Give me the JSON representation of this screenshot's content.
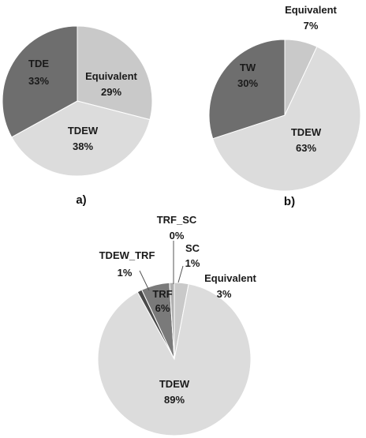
{
  "chart_data": [
    {
      "type": "pie",
      "caption": "a)",
      "slices": [
        {
          "label": "Equivalent",
          "value": 29,
          "value_label": "29%",
          "color": "#c9c9c9"
        },
        {
          "label": "TDEW",
          "value": 38,
          "value_label": "38%",
          "color": "#dcdcdc"
        },
        {
          "label": "TDE",
          "value": 33,
          "value_label": "33%",
          "color": "#6e6e6e"
        }
      ]
    },
    {
      "type": "pie",
      "caption": "b)",
      "slices": [
        {
          "label": "Equivalent",
          "value": 7,
          "value_label": "7%",
          "color": "#c9c9c9"
        },
        {
          "label": "TDEW",
          "value": 63,
          "value_label": "63%",
          "color": "#dcdcdc"
        },
        {
          "label": "TW",
          "value": 30,
          "value_label": "30%",
          "color": "#6e6e6e"
        }
      ]
    },
    {
      "type": "pie",
      "caption": "",
      "slices": [
        {
          "label": "Equivalent",
          "value": 3,
          "value_label": "3%",
          "color": "#c9c9c9"
        },
        {
          "label": "TDEW",
          "value": 89,
          "value_label": "89%",
          "color": "#dcdcdc"
        },
        {
          "label": "TDEW_TRF",
          "value": 1,
          "value_label": "1%",
          "color": "#4a4a4a"
        },
        {
          "label": "TRF",
          "value": 6,
          "value_label": "6%",
          "color": "#7a7a7a"
        },
        {
          "label": "TRF_SC",
          "value": 0,
          "value_label": "0%",
          "color": "#9a9a9a"
        },
        {
          "label": "SC",
          "value": 1,
          "value_label": "1%",
          "color": "#b0b0b0"
        }
      ]
    }
  ]
}
